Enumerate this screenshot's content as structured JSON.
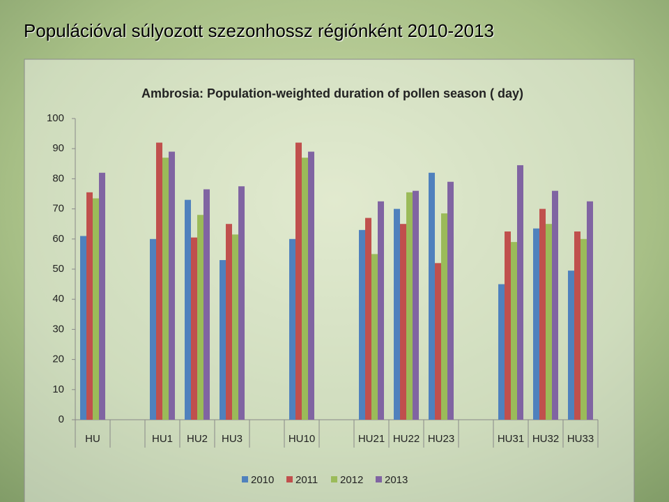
{
  "slide_title": "Populációval súlyozott szezonhossz régiónként 2010-2013",
  "chart_data": {
    "type": "bar",
    "title": "Ambrosia:  Population-weighted duration of pollen  season ( day)",
    "categories": [
      "HU",
      null,
      "HU1",
      "HU2",
      "HU3",
      null,
      "HU10",
      null,
      "HU21",
      "HU22",
      "HU23",
      null,
      "HU31",
      "HU32",
      "HU33"
    ],
    "series": [
      {
        "name": "2010",
        "color": "#4f81bd",
        "values": [
          61,
          null,
          60,
          73,
          53,
          null,
          60,
          null,
          63,
          70,
          82,
          null,
          45,
          63.5,
          49.5
        ]
      },
      {
        "name": "2011",
        "color": "#c0504d",
        "values": [
          75.5,
          null,
          92,
          60.5,
          65,
          null,
          92,
          null,
          67,
          65,
          52,
          null,
          62.5,
          70,
          62.5
        ]
      },
      {
        "name": "2012",
        "color": "#9bbb59",
        "values": [
          73.5,
          null,
          87,
          68,
          61.5,
          null,
          87,
          null,
          55,
          75.5,
          68.5,
          null,
          59,
          65,
          60
        ]
      },
      {
        "name": "2013",
        "color": "#8064a2",
        "values": [
          82,
          null,
          89,
          76.5,
          77.5,
          null,
          89,
          null,
          72.5,
          76,
          79,
          null,
          84.5,
          76,
          72.5
        ]
      }
    ],
    "ylim": [
      0,
      100
    ],
    "yticks": [
      0,
      10,
      20,
      30,
      40,
      50,
      60,
      70,
      80,
      90,
      100
    ],
    "grid": false,
    "legend": "bottom"
  }
}
